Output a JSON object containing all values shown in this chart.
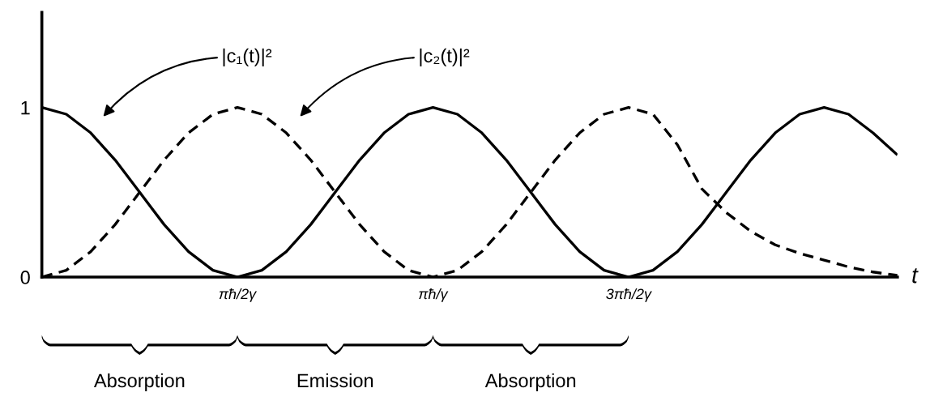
{
  "chart_data": {
    "type": "line",
    "xlabel": "t",
    "categories": [
      null,
      null,
      null,
      null,
      null,
      null,
      null,
      null,
      "πħ/2γ",
      null,
      null,
      null,
      null,
      null,
      null,
      null,
      "πħ/γ",
      null,
      null,
      null,
      null,
      null,
      null,
      null,
      "3πħ/2γ",
      null,
      null,
      null,
      null,
      null,
      null,
      null,
      null,
      null,
      null,
      null
    ],
    "ylim": [
      0,
      1.56
    ],
    "yticks": [
      0,
      1
    ],
    "grid": false,
    "marker": "none",
    "series": [
      {
        "color": "#000000",
        "line_style": "solid",
        "values": [
          1,
          0.96,
          0.85,
          0.69,
          0.5,
          0.31,
          0.15,
          0.04,
          0,
          0.04,
          0.15,
          0.31,
          0.5,
          0.69,
          0.85,
          0.96,
          1,
          0.96,
          0.85,
          0.69,
          0.5,
          0.31,
          0.15,
          0.04,
          0,
          0.04,
          0.15,
          0.31,
          0.5,
          0.69,
          0.85,
          0.96,
          1,
          0.96,
          0.85,
          0.72
        ]
      },
      {
        "color": "#000000",
        "line_style": "dashed",
        "values": [
          0,
          0.04,
          0.15,
          0.31,
          0.5,
          0.69,
          0.85,
          0.96,
          1,
          0.96,
          0.85,
          0.69,
          0.5,
          0.31,
          0.15,
          0.04,
          0,
          0.04,
          0.15,
          0.31,
          0.5,
          0.69,
          0.85,
          0.96,
          1,
          0.96,
          0.78,
          0.52,
          0.38,
          0.27,
          0.19,
          0.14,
          0.1,
          0.06,
          0.03,
          0.01
        ]
      }
    ],
    "annotations": [
      "|c₁(t)|²",
      "|c₂(t)|²",
      "Absorption",
      "Emission",
      "Absorption"
    ]
  }
}
